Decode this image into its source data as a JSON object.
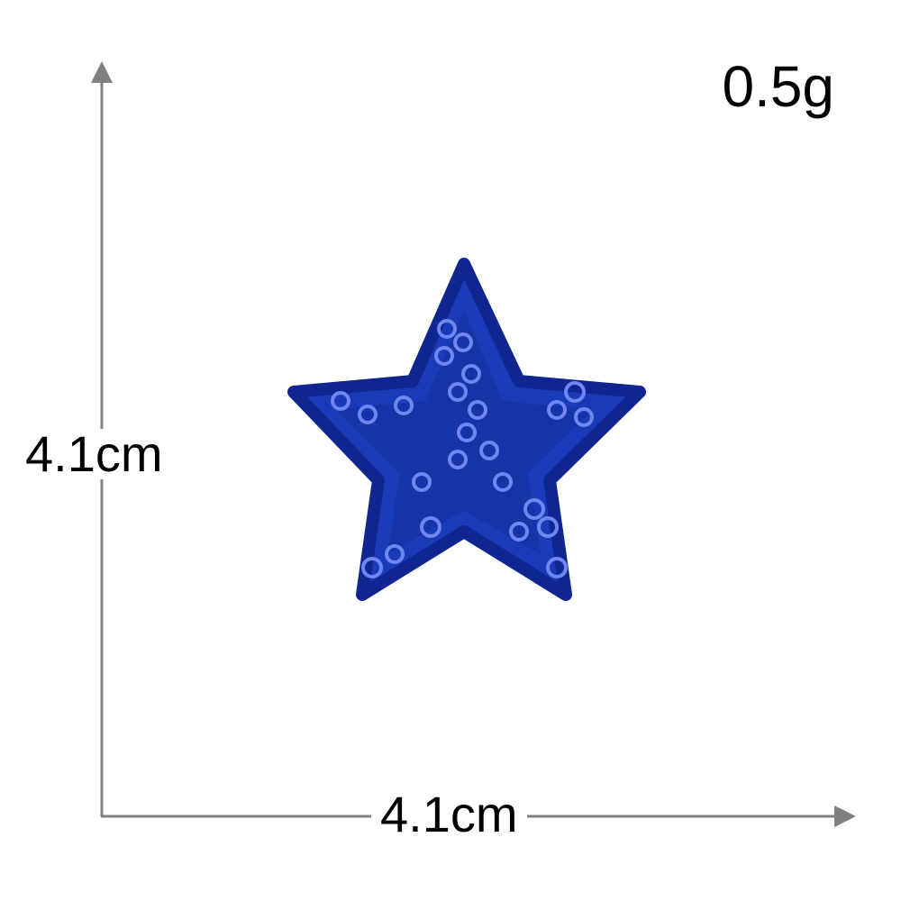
{
  "product": {
    "name_icon": "blue-sequin-star-patch",
    "weight": "0.5g",
    "height": "4.1cm",
    "width": "4.1cm",
    "colors": {
      "star": "#1a3bb8",
      "star_dark": "#0f2590",
      "sequin": "#6f86f0",
      "axis": "#808080"
    }
  }
}
